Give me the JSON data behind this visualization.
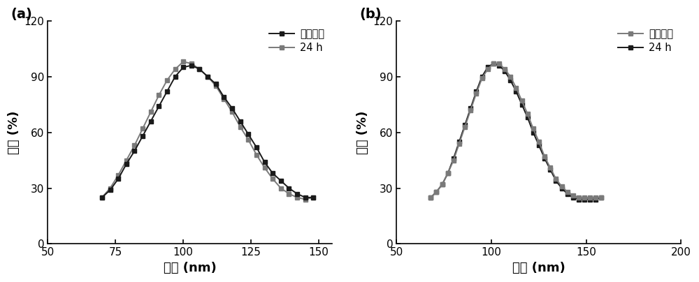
{
  "panel_a": {
    "label": "(a)",
    "fresh_x": [
      70,
      73,
      76,
      79,
      82,
      85,
      88,
      91,
      94,
      97,
      100,
      103,
      106,
      109,
      112,
      115,
      118,
      121,
      124,
      127,
      130,
      133,
      136,
      139,
      142,
      145,
      148
    ],
    "fresh_y": [
      25,
      29,
      35,
      43,
      50,
      58,
      66,
      74,
      82,
      90,
      95,
      96,
      94,
      90,
      86,
      79,
      73,
      66,
      59,
      52,
      44,
      38,
      34,
      30,
      27,
      25,
      25
    ],
    "aged_x": [
      70,
      73,
      76,
      79,
      82,
      85,
      88,
      91,
      94,
      97,
      100,
      103,
      106,
      109,
      112,
      115,
      118,
      121,
      124,
      127,
      130,
      133,
      136,
      139,
      142,
      145,
      148
    ],
    "aged_y": [
      25,
      30,
      37,
      45,
      53,
      62,
      71,
      80,
      88,
      94,
      98,
      97,
      94,
      90,
      85,
      78,
      71,
      63,
      56,
      48,
      41,
      35,
      30,
      27,
      25,
      24,
      25
    ],
    "xlim": [
      50,
      155
    ],
    "xticks": [
      50,
      75,
      100,
      125,
      150
    ],
    "ylim": [
      0,
      120
    ],
    "yticks": [
      0,
      30,
      60,
      90,
      120
    ],
    "xlabel": "直径 (nm)",
    "ylabel": "强度 (%)",
    "fresh_label": "新鲜溶液",
    "aged_label": "24 h",
    "fresh_color": "#1a1a1a",
    "aged_color": "#7a7a7a",
    "fresh_zorder": 3,
    "aged_zorder": 2
  },
  "panel_b": {
    "label": "(b)",
    "fresh_x": [
      68,
      71,
      74,
      77,
      80,
      83,
      86,
      89,
      92,
      95,
      98,
      101,
      104,
      107,
      110,
      113,
      116,
      119,
      122,
      125,
      128,
      131,
      134,
      137,
      140,
      143,
      146,
      149,
      152,
      155,
      158
    ],
    "fresh_y": [
      25,
      28,
      32,
      38,
      45,
      54,
      63,
      72,
      81,
      89,
      94,
      97,
      97,
      94,
      90,
      84,
      77,
      70,
      62,
      55,
      47,
      41,
      35,
      31,
      28,
      26,
      25,
      25,
      25,
      25,
      25
    ],
    "aged_x": [
      68,
      71,
      74,
      77,
      80,
      83,
      86,
      89,
      92,
      95,
      98,
      101,
      104,
      107,
      110,
      113,
      116,
      119,
      122,
      125,
      128,
      131,
      134,
      137,
      140,
      143,
      146,
      149,
      152,
      155,
      158
    ],
    "aged_y": [
      25,
      28,
      32,
      38,
      46,
      55,
      64,
      73,
      82,
      90,
      95,
      97,
      96,
      93,
      88,
      82,
      75,
      68,
      60,
      53,
      46,
      40,
      34,
      30,
      27,
      25,
      24,
      24,
      24,
      24,
      25
    ],
    "xlim": [
      50,
      200
    ],
    "xticks": [
      50,
      100,
      150,
      200
    ],
    "ylim": [
      0,
      120
    ],
    "yticks": [
      0,
      30,
      60,
      90,
      120
    ],
    "xlabel": "直径 (nm)",
    "ylabel": "强度 (%)",
    "fresh_label": "新鲜溶液",
    "aged_label": "24 h",
    "fresh_color": "#7a7a7a",
    "aged_color": "#1a1a1a",
    "fresh_zorder": 3,
    "aged_zorder": 2
  },
  "fig_width": 10.0,
  "fig_height": 4.04,
  "dpi": 100,
  "background_color": "#ffffff",
  "linewidth": 1.4,
  "markersize": 4.5,
  "marker": "s",
  "label_fontsize": 13,
  "tick_fontsize": 11,
  "legend_fontsize": 10.5,
  "panel_label_fontsize": 14
}
